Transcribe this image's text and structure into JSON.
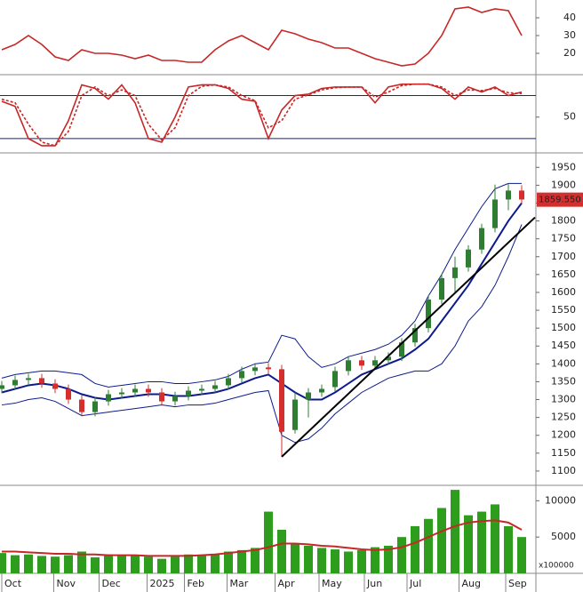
{
  "chart_data": [
    {
      "type": "line",
      "ylim": [
        8,
        50
      ],
      "yticks": [
        20,
        30,
        40
      ],
      "series": [
        {
          "color": "#c62828",
          "values": [
            22,
            25,
            30,
            25,
            18,
            16,
            22,
            20,
            20,
            19,
            17,
            19,
            16,
            16,
            15,
            15,
            22,
            27,
            30,
            26,
            22,
            33,
            31,
            28,
            26,
            23,
            23,
            20,
            17,
            15,
            13,
            14,
            20,
            30,
            45,
            46,
            43,
            45,
            44,
            30
          ]
        }
      ]
    },
    {
      "type": "line",
      "ylim": [
        0,
        108
      ],
      "yticks": [
        50
      ],
      "levels": [
        20,
        80
      ],
      "level_color": "#1a237e",
      "series": [
        {
          "color": "#c62828",
          "dash": false,
          "values": [
            72,
            65,
            20,
            10,
            10,
            45,
            95,
            90,
            75,
            95,
            70,
            20,
            15,
            50,
            92,
            95,
            95,
            90,
            75,
            72,
            20,
            60,
            80,
            82,
            90,
            92,
            92,
            92,
            70,
            92,
            96,
            96,
            96,
            90,
            75,
            92,
            85,
            92,
            80,
            85
          ]
        },
        {
          "color": "#c62828",
          "dash": true,
          "values": [
            75,
            70,
            40,
            15,
            10,
            30,
            80,
            92,
            80,
            88,
            80,
            40,
            18,
            35,
            80,
            93,
            95,
            92,
            80,
            73,
            35,
            45,
            75,
            81,
            88,
            91,
            92,
            92,
            78,
            85,
            94,
            96,
            96,
            92,
            80,
            88,
            87,
            90,
            84,
            83
          ]
        }
      ]
    },
    {
      "type": "candlestick",
      "ylim": [
        1060,
        1988
      ],
      "yticks": [
        1100,
        1150,
        1200,
        1250,
        1300,
        1350,
        1400,
        1450,
        1500,
        1550,
        1600,
        1650,
        1700,
        1750,
        1800,
        1850,
        1900,
        1950
      ],
      "up_color": "#2e7d32",
      "down_color": "#d32f2f",
      "open": [
        1330,
        1340,
        1355,
        1360,
        1345,
        1330,
        1300,
        1265,
        1295,
        1315,
        1320,
        1330,
        1320,
        1295,
        1310,
        1325,
        1330,
        1340,
        1360,
        1380,
        1390,
        1385,
        1215,
        1300,
        1320,
        1335,
        1380,
        1410,
        1395,
        1410,
        1420,
        1460,
        1500,
        1580,
        1640,
        1670,
        1720,
        1780,
        1860,
        1885
      ],
      "high": [
        1352,
        1367,
        1372,
        1372,
        1357,
        1342,
        1312,
        1307,
        1327,
        1332,
        1342,
        1342,
        1332,
        1322,
        1337,
        1342,
        1352,
        1372,
        1392,
        1402,
        1402,
        1397,
        1320,
        1332,
        1342,
        1392,
        1422,
        1422,
        1422,
        1432,
        1472,
        1512,
        1592,
        1652,
        1700,
        1732,
        1792,
        1902,
        1905,
        1900
      ],
      "low": [
        1318,
        1328,
        1343,
        1333,
        1318,
        1288,
        1253,
        1253,
        1283,
        1303,
        1308,
        1308,
        1283,
        1283,
        1298,
        1313,
        1318,
        1328,
        1348,
        1368,
        1373,
        1140,
        1205,
        1250,
        1308,
        1323,
        1368,
        1383,
        1383,
        1398,
        1408,
        1448,
        1488,
        1568,
        1600,
        1658,
        1708,
        1768,
        1830,
        1848
      ],
      "close": [
        1340,
        1355,
        1360,
        1345,
        1330,
        1300,
        1265,
        1295,
        1315,
        1320,
        1330,
        1320,
        1295,
        1310,
        1325,
        1330,
        1340,
        1360,
        1380,
        1390,
        1385,
        1210,
        1300,
        1320,
        1330,
        1380,
        1410,
        1395,
        1410,
        1420,
        1460,
        1500,
        1580,
        1640,
        1670,
        1720,
        1780,
        1860,
        1885,
        1860
      ],
      "overlays": [
        {
          "color": "#0d1b8c",
          "width": 2,
          "values": [
            1320,
            1330,
            1340,
            1345,
            1340,
            1330,
            1315,
            1305,
            1300,
            1305,
            1310,
            1315,
            1315,
            1310,
            1310,
            1315,
            1320,
            1330,
            1345,
            1360,
            1370,
            1345,
            1320,
            1300,
            1300,
            1320,
            1345,
            1370,
            1385,
            1400,
            1415,
            1440,
            1470,
            1520,
            1570,
            1620,
            1680,
            1740,
            1800,
            1850
          ]
        },
        {
          "color": "#0d1b8c",
          "width": 1,
          "values": [
            1360,
            1370,
            1375,
            1380,
            1380,
            1375,
            1370,
            1345,
            1335,
            1340,
            1345,
            1350,
            1350,
            1345,
            1345,
            1350,
            1355,
            1365,
            1385,
            1400,
            1405,
            1480,
            1470,
            1420,
            1390,
            1400,
            1420,
            1430,
            1440,
            1455,
            1480,
            1520,
            1590,
            1650,
            1720,
            1780,
            1840,
            1890,
            1905,
            1905
          ]
        },
        {
          "color": "#0d1b8c",
          "width": 1,
          "values": [
            1285,
            1290,
            1300,
            1305,
            1295,
            1275,
            1255,
            1260,
            1265,
            1270,
            1275,
            1280,
            1285,
            1280,
            1285,
            1285,
            1290,
            1300,
            1310,
            1320,
            1325,
            1200,
            1180,
            1190,
            1220,
            1260,
            1290,
            1320,
            1340,
            1360,
            1370,
            1380,
            1380,
            1400,
            1450,
            1520,
            1560,
            1620,
            1700,
            1790
          ]
        }
      ],
      "trendline": {
        "color": "#000000",
        "x": [
          21,
          40
        ],
        "values": [
          1140,
          1810
        ]
      },
      "last_price": {
        "value": 1859.55,
        "label": "1859.550"
      },
      "last_color": "#d32f2f"
    },
    {
      "type": "bar",
      "ylim": [
        0,
        12000
      ],
      "yticks": [
        5000,
        10000
      ],
      "unit_label": "x100000",
      "color": "#2e9d1e",
      "values": [
        2800,
        2500,
        2600,
        2400,
        2300,
        2500,
        3000,
        2200,
        2600,
        2400,
        2500,
        2300,
        2000,
        2300,
        2600,
        2500,
        2700,
        3000,
        3200,
        3500,
        8500,
        6000,
        4000,
        3800,
        3500,
        3300,
        3000,
        3200,
        3600,
        3800,
        5000,
        6500,
        7500,
        9000,
        11500,
        8000,
        8500,
        9500,
        6500,
        5000
      ],
      "ma": {
        "color": "#c62828",
        "values": [
          3000,
          3000,
          2900,
          2800,
          2700,
          2700,
          2600,
          2600,
          2500,
          2500,
          2500,
          2400,
          2400,
          2400,
          2400,
          2500,
          2600,
          2800,
          3000,
          3200,
          3600,
          4100,
          4100,
          4000,
          3800,
          3700,
          3500,
          3300,
          3200,
          3300,
          3600,
          4200,
          5000,
          5800,
          6500,
          7000,
          7200,
          7300,
          7000,
          6000
        ]
      },
      "xlim": [
        0,
        40
      ],
      "xticks": [
        {
          "value": 0,
          "label": "Oct"
        },
        {
          "value": 3.9,
          "label": "Nov"
        },
        {
          "value": 7.3,
          "label": "Dec"
        },
        {
          "value": 10.9,
          "label": "2025"
        },
        {
          "value": 13.7,
          "label": "Feb"
        },
        {
          "value": 16.9,
          "label": "Mar"
        },
        {
          "value": 20.5,
          "label": "Apr"
        },
        {
          "value": 23.8,
          "label": "May"
        },
        {
          "value": 27.2,
          "label": "Jun"
        },
        {
          "value": 30.4,
          "label": "Jul"
        },
        {
          "value": 34.3,
          "label": "Aug"
        },
        {
          "value": 37.8,
          "label": "Sep"
        }
      ]
    }
  ]
}
